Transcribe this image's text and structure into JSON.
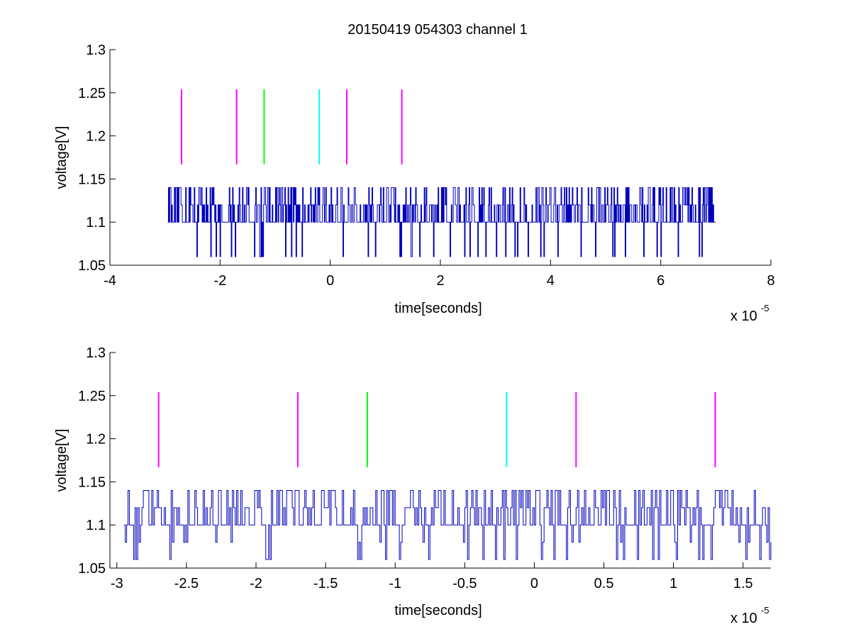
{
  "figure": {
    "title": "20150419 054303 channel 1",
    "background": "#ffffff"
  },
  "chart_data": [
    {
      "type": "line",
      "title": "20150419 054303 channel 1",
      "xlabel": "time[seconds]",
      "ylabel": "voltage[V]",
      "x_exponent_base": "x 10",
      "x_exponent_power": "-5",
      "xlim": [
        -4,
        8
      ],
      "ylim": [
        1.05,
        1.3
      ],
      "xticks": [
        -4,
        -2,
        0,
        2,
        4,
        6,
        8
      ],
      "xtick_labels": [
        "-4",
        "-2",
        "0",
        "2",
        "4",
        "6",
        "8"
      ],
      "yticks": [
        1.05,
        1.1,
        1.15,
        1.2,
        1.25,
        1.3
      ],
      "ytick_labels": [
        "1.05",
        "1.1",
        "1.15",
        "1.2",
        "1.25",
        "1.3"
      ],
      "grid": false,
      "signal": {
        "color": "#0000bb",
        "x_start": -2.95,
        "x_end": 7.0,
        "levels": [
          1.06,
          1.1,
          1.12,
          1.14
        ],
        "seed": 17,
        "step": 0.012,
        "base_level": 1.1
      },
      "markers": [
        {
          "x": -2.7,
          "y0": 1.167,
          "y1": 1.254,
          "color": "#ff00ff"
        },
        {
          "x": -1.7,
          "y0": 1.167,
          "y1": 1.254,
          "color": "#ff00ff"
        },
        {
          "x": -1.2,
          "y0": 1.167,
          "y1": 1.254,
          "color": "#00ff00"
        },
        {
          "x": -0.2,
          "y0": 1.167,
          "y1": 1.254,
          "color": "#00ffff"
        },
        {
          "x": 0.3,
          "y0": 1.167,
          "y1": 1.254,
          "color": "#ff00ff"
        },
        {
          "x": 1.3,
          "y0": 1.167,
          "y1": 1.254,
          "color": "#ff00ff"
        }
      ]
    },
    {
      "type": "line",
      "title": "",
      "xlabel": "time[seconds]",
      "ylabel": "voltage[V]",
      "x_exponent_base": "x 10",
      "x_exponent_power": "-5",
      "xlim": [
        -3.05,
        1.7
      ],
      "ylim": [
        1.05,
        1.3
      ],
      "xticks": [
        -3,
        -2.5,
        -2,
        -1.5,
        -1,
        -0.5,
        0,
        0.5,
        1,
        1.5
      ],
      "xtick_labels": [
        "-3",
        "-2.5",
        "-2",
        "-1.5",
        "-1",
        "-0.5",
        "0",
        "0.5",
        "1",
        "1.5"
      ],
      "yticks": [
        1.05,
        1.1,
        1.15,
        1.2,
        1.25,
        1.3
      ],
      "ytick_labels": [
        "1.05",
        "1.1",
        "1.15",
        "1.2",
        "1.25",
        "1.3"
      ],
      "grid": false,
      "signal": {
        "color": "#0000bb",
        "x_start": -2.95,
        "x_end": 1.7,
        "levels": [
          1.06,
          1.08,
          1.1,
          1.12,
          1.14
        ],
        "seed": 41,
        "step": 0.01,
        "base_level": 1.1
      },
      "markers": [
        {
          "x": -2.7,
          "y0": 1.167,
          "y1": 1.254,
          "color": "#ff00ff"
        },
        {
          "x": -1.7,
          "y0": 1.167,
          "y1": 1.254,
          "color": "#ff00ff"
        },
        {
          "x": -1.2,
          "y0": 1.167,
          "y1": 1.254,
          "color": "#00ff00"
        },
        {
          "x": -0.2,
          "y0": 1.167,
          "y1": 1.254,
          "color": "#00ffff"
        },
        {
          "x": 0.3,
          "y0": 1.167,
          "y1": 1.254,
          "color": "#ff00ff"
        },
        {
          "x": 1.3,
          "y0": 1.167,
          "y1": 1.254,
          "color": "#ff00ff"
        }
      ]
    }
  ]
}
